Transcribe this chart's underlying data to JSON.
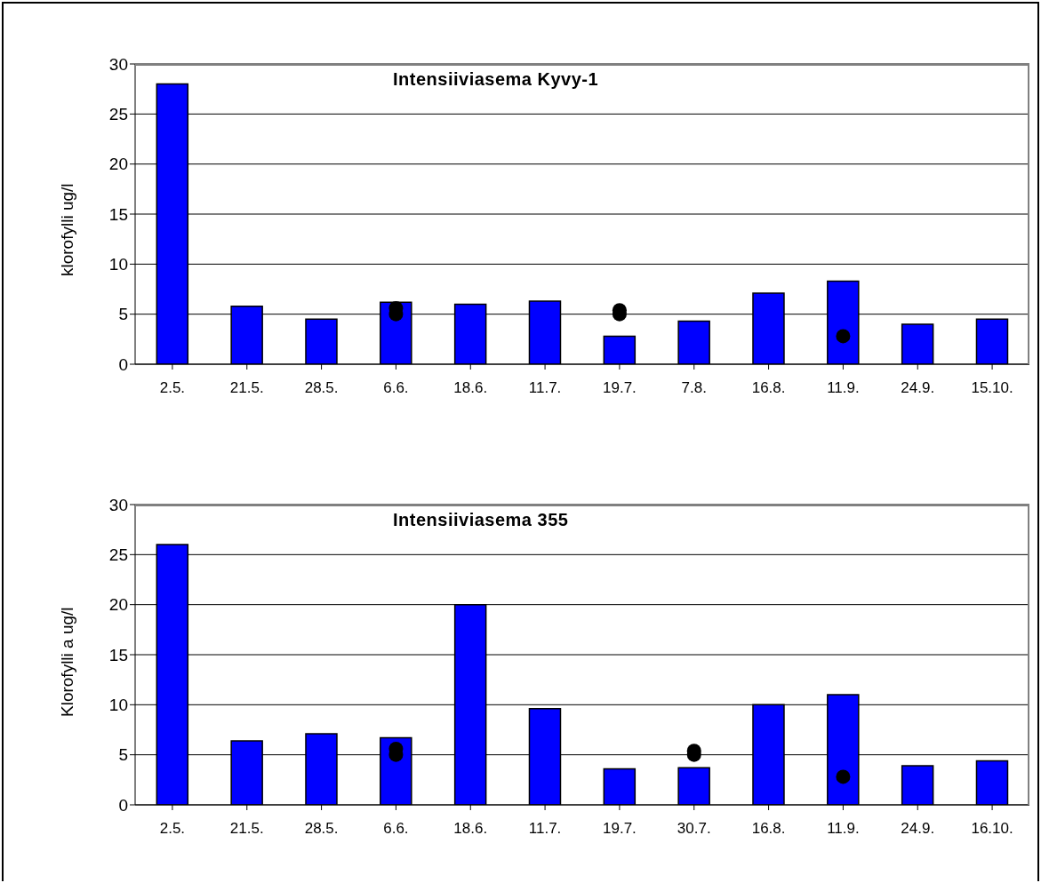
{
  "chart_data": [
    {
      "type": "bar",
      "title": "Intensiiviasema Kyvy-1",
      "ylabel": "klorofylli ug/l",
      "categories": [
        "2.5.",
        "21.5.",
        "28.5.",
        "6.6.",
        "18.6.",
        "11.7.",
        "19.7.",
        "7.8.",
        "16.8.",
        "11.9.",
        "24.9.",
        "15.10."
      ],
      "series": [
        {
          "color": "#0000ff",
          "values": [
            28,
            5.8,
            4.5,
            6.2,
            6.0,
            6.3,
            2.8,
            4.3,
            7.1,
            8.3,
            4.0,
            4.5
          ]
        },
        {
          "type": "scatter",
          "color": "#000000",
          "marker": "circle",
          "values": [
            null,
            null,
            null,
            5.6,
            null,
            null,
            5.4,
            null,
            null,
            2.8,
            null,
            null
          ]
        },
        {
          "type": "scatter",
          "color": "#000000",
          "marker": "circle",
          "values": [
            null,
            null,
            null,
            5.0,
            null,
            null,
            5.0,
            null,
            null,
            null,
            null,
            null
          ]
        }
      ],
      "ylim": [
        0,
        30
      ],
      "yticks": [
        0,
        5,
        10,
        15,
        20,
        25,
        30
      ],
      "grid": "y"
    },
    {
      "type": "bar",
      "title": "Intensiiviasema 355",
      "ylabel": "Klorofylli a ug/l",
      "categories": [
        "2.5.",
        "21.5.",
        "28.5.",
        "6.6.",
        "18.6.",
        "11.7.",
        "19.7.",
        "30.7.",
        "16.8.",
        "11.9.",
        "24.9.",
        "16.10."
      ],
      "series": [
        {
          "color": "#0000ff",
          "values": [
            26,
            6.4,
            7.1,
            6.7,
            20,
            9.6,
            3.6,
            3.7,
            10,
            11,
            3.9,
            4.4
          ]
        },
        {
          "type": "scatter",
          "color": "#000000",
          "marker": "circle",
          "values": [
            null,
            null,
            null,
            5.6,
            null,
            null,
            null,
            5.4,
            null,
            2.8,
            null,
            null
          ]
        },
        {
          "type": "scatter",
          "color": "#000000",
          "marker": "circle",
          "values": [
            null,
            null,
            null,
            5.0,
            null,
            null,
            null,
            5.0,
            null,
            null,
            null,
            null
          ]
        }
      ],
      "ylim": [
        0,
        30
      ],
      "yticks": [
        0,
        5,
        10,
        15,
        20,
        25,
        30
      ],
      "grid": "y"
    }
  ]
}
